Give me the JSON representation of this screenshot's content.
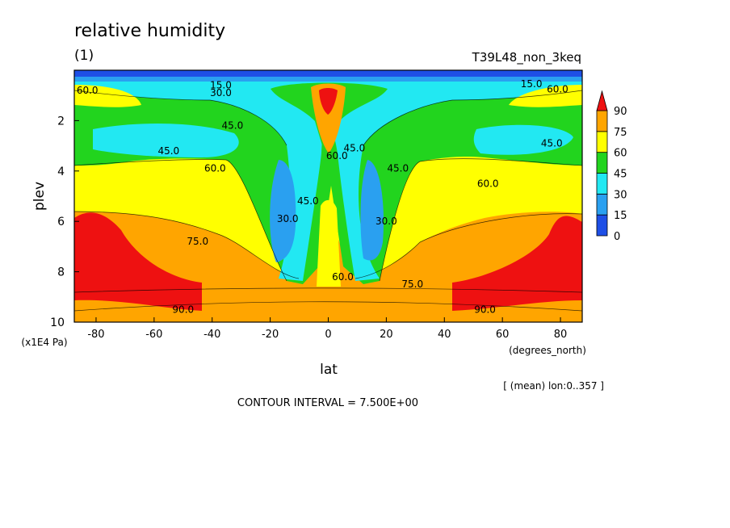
{
  "header": {
    "title": "relative humidity",
    "panel": "(1)",
    "run": "T39L48_non_3keq"
  },
  "footer": {
    "mean_note": "[ (mean) lon:0..357 ]",
    "contour_interval": "CONTOUR INTERVAL = 7.500E+00"
  },
  "chart_data": {
    "type": "heatmap",
    "title": "relative humidity",
    "xlabel": "lat",
    "xunits": "(degrees_north)",
    "ylabel": "plev",
    "yunits": "(x1E4 Pa)",
    "xlim": [
      -87.5,
      87.5
    ],
    "ylim": [
      0,
      10
    ],
    "y_inverted": true,
    "x_ticks": [
      -80,
      -60,
      -40,
      -20,
      0,
      20,
      40,
      60,
      80
    ],
    "y_ticks": [
      2,
      4,
      6,
      8,
      10
    ],
    "contour_interval": 7.5,
    "colorbar": {
      "levels": [
        0,
        15,
        30,
        45,
        60,
        75,
        90
      ],
      "colors": [
        "#1e4fe6",
        "#2aa0f0",
        "#22e8f2",
        "#22d41e",
        "#ffff00",
        "#ffa500",
        "#ee1111"
      ]
    },
    "contour_labels": [
      {
        "text": "60.0",
        "lat": -83,
        "plev": 0.8
      },
      {
        "text": "15.0",
        "lat": -37,
        "plev": 0.6
      },
      {
        "text": "30.0",
        "lat": -37,
        "plev": 0.9
      },
      {
        "text": "45.0",
        "lat": -33,
        "plev": 2.2
      },
      {
        "text": "45.0",
        "lat": -55,
        "plev": 3.2
      },
      {
        "text": "60.0",
        "lat": -39,
        "plev": 3.9
      },
      {
        "text": "75.0",
        "lat": -45,
        "plev": 6.8
      },
      {
        "text": "30.0",
        "lat": -14,
        "plev": 5.9
      },
      {
        "text": "45.0",
        "lat": -7,
        "plev": 5.2
      },
      {
        "text": "90.0",
        "lat": -50,
        "plev": 9.5
      },
      {
        "text": "60.0",
        "lat": 3,
        "plev": 3.4
      },
      {
        "text": "45.0",
        "lat": 9,
        "plev": 3.1
      },
      {
        "text": "60.0",
        "lat": 5,
        "plev": 8.2
      },
      {
        "text": "45.0",
        "lat": 24,
        "plev": 3.9
      },
      {
        "text": "30.0",
        "lat": 20,
        "plev": 6.0
      },
      {
        "text": "75.0",
        "lat": 29,
        "plev": 8.5
      },
      {
        "text": "90.0",
        "lat": 54,
        "plev": 9.5
      },
      {
        "text": "60.0",
        "lat": 55,
        "plev": 4.5
      },
      {
        "text": "45.0",
        "lat": 77,
        "plev": 2.9
      },
      {
        "text": "15.0",
        "lat": 70,
        "plev": 0.55
      },
      {
        "text": "60.0",
        "lat": 79,
        "plev": 0.75
      }
    ]
  }
}
